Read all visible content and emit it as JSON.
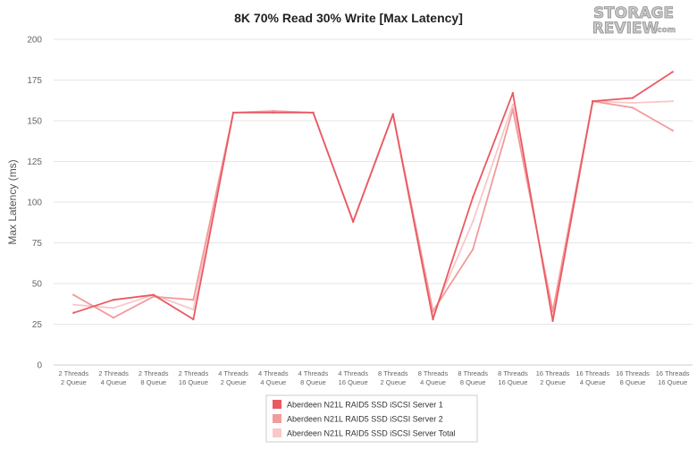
{
  "chart_data": {
    "type": "line",
    "title": "8K 70% Read 30% Write [Max Latency]",
    "ylabel": "Max Latency (ms)",
    "xlabel": "",
    "ylim": [
      0,
      200
    ],
    "yticks": [
      "0",
      "25",
      "50",
      "75",
      "100",
      "125",
      "150",
      "175",
      "200"
    ],
    "ytick_values": [
      0,
      25,
      50,
      75,
      100,
      125,
      150,
      175,
      200
    ],
    "grid": true,
    "legend_position": "bottom-center",
    "categories": [
      [
        "2 Threads",
        "2 Queue"
      ],
      [
        "2 Threads",
        "4 Queue"
      ],
      [
        "2 Threads",
        "8 Queue"
      ],
      [
        "2 Threads",
        "16 Queue"
      ],
      [
        "4 Threads",
        "2 Queue"
      ],
      [
        "4 Threads",
        "4 Queue"
      ],
      [
        "4 Threads",
        "8 Queue"
      ],
      [
        "4 Threads",
        "16 Queue"
      ],
      [
        "8 Threads",
        "2 Queue"
      ],
      [
        "8 Threads",
        "4 Queue"
      ],
      [
        "8 Threads",
        "8 Queue"
      ],
      [
        "8 Threads",
        "16 Queue"
      ],
      [
        "16 Threads",
        "2 Queue"
      ],
      [
        "16 Threads",
        "4 Queue"
      ],
      [
        "16 Threads",
        "8 Queue"
      ],
      [
        "16 Threads",
        "16 Queue"
      ]
    ],
    "series": [
      {
        "name": "Aberdeen N21L RAID5 SSD iSCSI Server 1",
        "color": "#ea5a62",
        "values": [
          32,
          40,
          43,
          28,
          155,
          155,
          155,
          88,
          154,
          28,
          103,
          167,
          27,
          162,
          164,
          180
        ]
      },
      {
        "name": "Aberdeen N21L RAID5 SSD iSCSI Server 2",
        "color": "#f29b9d",
        "values": [
          43,
          29,
          42,
          40,
          155,
          156,
          155,
          88,
          154,
          33,
          71,
          157,
          33,
          162,
          158,
          144
        ]
      },
      {
        "name": "Aberdeen N21L RAID5 SSD iSCSI Server Total",
        "color": "#f8c8ca",
        "values": [
          37,
          35,
          43,
          34,
          155,
          156,
          155,
          88,
          154,
          31,
          88,
          160,
          31,
          162,
          161,
          162
        ]
      }
    ]
  },
  "logo": {
    "line1": "STORAGE",
    "line2": "REVIEW",
    "suffix": ".com"
  }
}
